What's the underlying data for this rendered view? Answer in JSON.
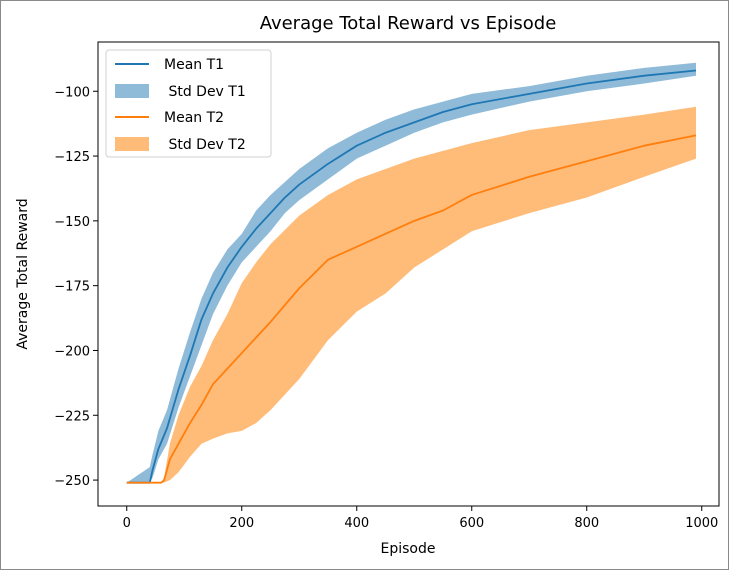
{
  "chart_data": {
    "type": "line",
    "title": "Average Total Reward vs Episode",
    "xlabel": "Episode",
    "ylabel": "Average Total Reward",
    "xlim": [
      -50,
      1030
    ],
    "ylim": [
      -260,
      -81
    ],
    "xticks": [
      0,
      200,
      400,
      600,
      800,
      1000
    ],
    "yticks": [
      -100,
      -125,
      -150,
      -175,
      -200,
      -225,
      -250
    ],
    "grid": false,
    "legend_position": "upper-left",
    "series": [
      {
        "name": "Mean T1",
        "band_name": " Std Dev T1",
        "color": "#1f77b4",
        "band_color": "#1f77b4",
        "x": [
          0,
          40,
          45,
          55,
          70,
          90,
          110,
          130,
          150,
          175,
          200,
          225,
          250,
          275,
          300,
          350,
          400,
          450,
          500,
          550,
          600,
          700,
          800,
          900,
          990
        ],
        "mean": [
          -251,
          -251,
          -246,
          -238,
          -230,
          -215,
          -202,
          -188,
          -178,
          -168,
          -160,
          -153,
          -147,
          -141,
          -136,
          -128,
          -121,
          -116,
          -112,
          -108,
          -105,
          -101,
          -97,
          -94,
          -92
        ],
        "lower": [
          -251,
          -251,
          -249,
          -242,
          -236,
          -222,
          -210,
          -198,
          -186,
          -175,
          -166,
          -160,
          -154,
          -147,
          -142,
          -134,
          -126,
          -121,
          -116,
          -112,
          -109,
          -104,
          -100,
          -97,
          -94
        ],
        "upper": [
          -251,
          -245,
          -240,
          -231,
          -223,
          -207,
          -193,
          -180,
          -170,
          -161,
          -155,
          -146,
          -140,
          -135,
          -130,
          -122,
          -116,
          -111,
          -107,
          -104,
          -101,
          -98,
          -94,
          -91,
          -89
        ]
      },
      {
        "name": "Mean T2",
        "band_name": " Std Dev T2",
        "color": "#ff7f0e",
        "band_color": "#ffbb78",
        "x": [
          0,
          60,
          65,
          75,
          90,
          110,
          130,
          150,
          175,
          200,
          225,
          250,
          300,
          350,
          400,
          450,
          500,
          550,
          600,
          700,
          800,
          900,
          990
        ],
        "mean": [
          -251,
          -251,
          -250,
          -242,
          -236,
          -228,
          -221,
          -213,
          -207,
          -201,
          -195,
          -189,
          -176,
          -165,
          -160,
          -155,
          -150,
          -146,
          -140,
          -133,
          -127,
          -121,
          -117
        ],
        "lower": [
          -251,
          -251,
          -251,
          -250,
          -247,
          -241,
          -236,
          -234,
          -232,
          -231,
          -228,
          -223,
          -211,
          -196,
          -185,
          -178,
          -168,
          -161,
          -154,
          -147,
          -141,
          -133,
          -126
        ],
        "upper": [
          -251,
          -251,
          -249,
          -236,
          -225,
          -214,
          -206,
          -196,
          -186,
          -174,
          -166,
          -159,
          -148,
          -140,
          -134,
          -130,
          -126,
          -123,
          -120,
          -115,
          -112,
          -109,
          -106
        ]
      }
    ]
  }
}
